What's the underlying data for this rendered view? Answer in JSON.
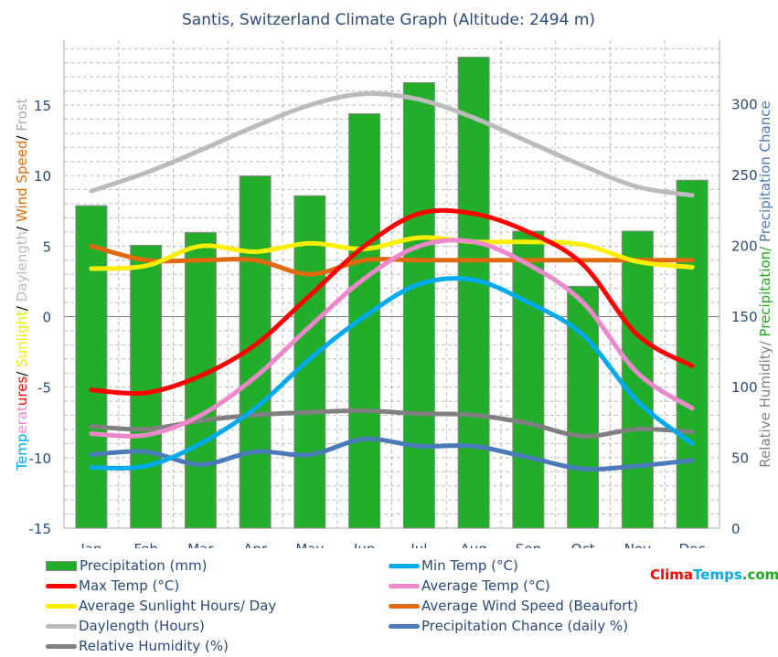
{
  "chart_data": {
    "type": "bar+line",
    "title": "Santis, Switzerland Climate Graph (Altitude: 2494 m)",
    "categories": [
      "Jan",
      "Feb",
      "Mar",
      "Apr",
      "May",
      "Jun",
      "Jul",
      "Aug",
      "Sep",
      "Oct",
      "Nov",
      "Dec"
    ],
    "left_axis": {
      "label_parts": [
        {
          "text": "Temp",
          "color": "#00aaee"
        },
        {
          "text": "erat",
          "color": "#ee88cc"
        },
        {
          "text": "ures",
          "color": "#ff0000"
        },
        {
          "text": "/ ",
          "color": "#000000"
        },
        {
          "text": "Sunlight",
          "color": "#eeee00"
        },
        {
          "text": "/ ",
          "color": "#000000"
        },
        {
          "text": "Daylength",
          "color": "#bbbbbb"
        },
        {
          "text": "/ ",
          "color": "#000000"
        },
        {
          "text": "Wind Speed",
          "color": "#e06a10"
        },
        {
          "text": "/ ",
          "color": "#000000"
        },
        {
          "text": "Frost",
          "color": "#aaaaaa"
        }
      ],
      "ylim": [
        -15,
        19.6
      ],
      "ticks": [
        -15,
        -10,
        -5,
        0,
        5,
        10,
        15
      ]
    },
    "right_axis": {
      "label_parts": [
        {
          "text": "Relative Humidity/ ",
          "color": "#808080"
        },
        {
          "text": "Precipitation/ ",
          "color": "#22aa22"
        },
        {
          "text": "Precipitation Chance",
          "color": "#4a7ab8"
        }
      ],
      "ylim": [
        0,
        345
      ],
      "ticks": [
        0,
        50,
        100,
        150,
        200,
        250,
        300
      ]
    },
    "grid": true,
    "bars": {
      "name": "Precipitation (mm)",
      "color": "#22ae2a",
      "axis": "right",
      "values": [
        228,
        200,
        209,
        249,
        235,
        293,
        315,
        333,
        210,
        171,
        210,
        246
      ]
    },
    "series": [
      {
        "name": "Min Temp (°C)",
        "color": "#00aaee",
        "axis": "left",
        "values": [
          -10.7,
          -10.6,
          -9.0,
          -6.5,
          -3.0,
          0.0,
          2.3,
          2.6,
          1.0,
          -1.3,
          -6.0,
          -9.0
        ]
      },
      {
        "name": "Max Temp (°C)",
        "color": "#ff0000",
        "axis": "left",
        "values": [
          -5.2,
          -5.4,
          -4.2,
          -2.0,
          1.5,
          5.0,
          7.3,
          7.3,
          6.0,
          3.7,
          -1.3,
          -3.5
        ]
      },
      {
        "name": "Average Temp (°C)",
        "color": "#ee88cc",
        "axis": "left",
        "values": [
          -8.3,
          -8.4,
          -7.0,
          -4.3,
          -0.7,
          2.7,
          5.0,
          5.3,
          3.7,
          1.0,
          -4.0,
          -6.5
        ]
      },
      {
        "name": "Average Sunlight Hours/ Day",
        "color": "#ffee00",
        "axis": "left",
        "values": [
          3.4,
          3.6,
          5.0,
          4.6,
          5.2,
          4.8,
          5.6,
          5.3,
          5.3,
          5.1,
          3.9,
          3.5
        ]
      },
      {
        "name": "Average Wind Speed (Beaufort)",
        "color": "#e06a10",
        "axis": "left",
        "values": [
          5,
          4,
          4,
          4,
          3,
          4,
          4,
          4,
          4,
          4,
          4,
          4
        ]
      },
      {
        "name": "Daylength (Hours)",
        "color": "#bbbbbb",
        "axis": "left",
        "values": [
          8.9,
          10.2,
          11.8,
          13.5,
          15.0,
          15.8,
          15.4,
          14.1,
          12.4,
          10.7,
          9.2,
          8.6
        ]
      },
      {
        "name": "Precipitation Chance (daily %)",
        "color": "#4a7ab8",
        "axis": "right",
        "values": [
          52,
          54,
          45,
          54,
          52,
          63,
          58,
          58,
          50,
          42,
          44,
          48
        ]
      },
      {
        "name": "Relative Humidity (%)",
        "color": "#808080",
        "axis": "right",
        "values": [
          72,
          70,
          76,
          80,
          82,
          83,
          81,
          80,
          74,
          65,
          70,
          68
        ]
      }
    ],
    "legend_position": "bottom"
  },
  "brand": {
    "part1": "Clima",
    "part2": "Temps",
    "part3": ".com",
    "color1": "#ff0000",
    "color2": "#00aaee",
    "color3": "#22aa22"
  }
}
